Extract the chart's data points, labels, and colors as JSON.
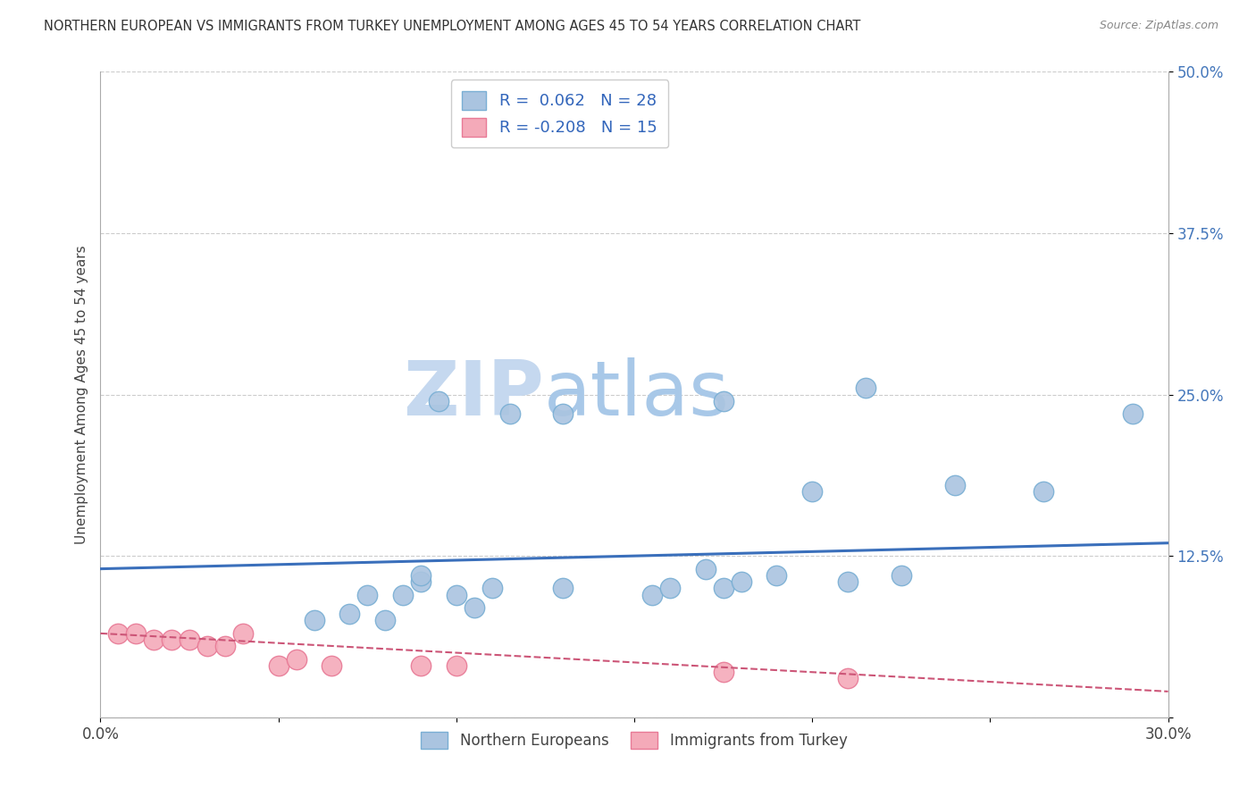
{
  "title": "NORTHERN EUROPEAN VS IMMIGRANTS FROM TURKEY UNEMPLOYMENT AMONG AGES 45 TO 54 YEARS CORRELATION CHART",
  "source": "Source: ZipAtlas.com",
  "ylabel": "Unemployment Among Ages 45 to 54 years",
  "xlim": [
    0.0,
    0.3
  ],
  "ylim": [
    0.0,
    0.5
  ],
  "xticks": [
    0.0,
    0.05,
    0.1,
    0.15,
    0.2,
    0.25,
    0.3
  ],
  "xticklabels": [
    "0.0%",
    "",
    "",
    "",
    "",
    "",
    "30.0%"
  ],
  "yticks": [
    0.0,
    0.125,
    0.25,
    0.375,
    0.5
  ],
  "yticklabels": [
    "",
    "12.5%",
    "25.0%",
    "37.5%",
    "50.0%"
  ],
  "blue_R": 0.062,
  "blue_N": 28,
  "pink_R": -0.208,
  "pink_N": 15,
  "blue_color": "#aac4e0",
  "pink_color": "#f4aab9",
  "blue_edge": "#7aafd4",
  "pink_edge": "#e87a96",
  "trend_blue": "#3a6fbb",
  "trend_pink": "#cc5577",
  "watermark_zip": "ZIP",
  "watermark_atlas": "atlas",
  "watermark_color_zip": "#c5d8ef",
  "watermark_color_atlas": "#a8c8e8",
  "blue_scatter_x": [
    0.06,
    0.07,
    0.075,
    0.08,
    0.085,
    0.09,
    0.09,
    0.095,
    0.1,
    0.105,
    0.11,
    0.115,
    0.13,
    0.13,
    0.155,
    0.16,
    0.17,
    0.175,
    0.175,
    0.18,
    0.19,
    0.2,
    0.21,
    0.215,
    0.225,
    0.24,
    0.265,
    0.29
  ],
  "blue_scatter_y": [
    0.075,
    0.08,
    0.095,
    0.075,
    0.095,
    0.105,
    0.11,
    0.245,
    0.095,
    0.085,
    0.1,
    0.235,
    0.1,
    0.235,
    0.095,
    0.1,
    0.115,
    0.1,
    0.245,
    0.105,
    0.11,
    0.175,
    0.105,
    0.255,
    0.11,
    0.18,
    0.175,
    0.235
  ],
  "pink_scatter_x": [
    0.005,
    0.01,
    0.015,
    0.02,
    0.025,
    0.03,
    0.035,
    0.04,
    0.05,
    0.055,
    0.065,
    0.09,
    0.1,
    0.175,
    0.21
  ],
  "pink_scatter_y": [
    0.065,
    0.065,
    0.06,
    0.06,
    0.06,
    0.055,
    0.055,
    0.065,
    0.04,
    0.045,
    0.04,
    0.04,
    0.04,
    0.035,
    0.03
  ],
  "blue_trend_x": [
    0.0,
    0.3
  ],
  "blue_trend_y": [
    0.115,
    0.135
  ],
  "pink_trend_x": [
    0.0,
    0.3
  ],
  "pink_trend_y": [
    0.065,
    0.02
  ]
}
